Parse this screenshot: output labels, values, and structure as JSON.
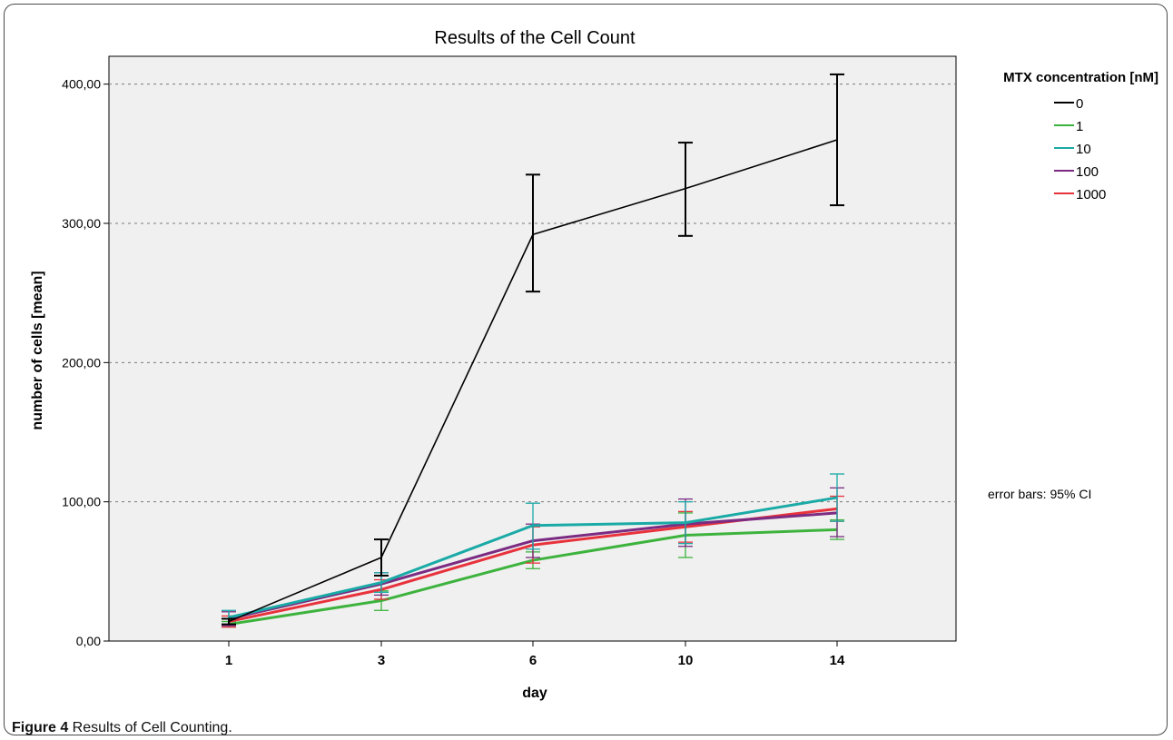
{
  "chart_data": {
    "type": "line",
    "title": "Results of the Cell Count",
    "xlabel": "day",
    "ylabel": "number of cells [mean]",
    "categories": [
      "1",
      "3",
      "6",
      "10",
      "14"
    ],
    "ylim": [
      0,
      420
    ],
    "yticks": [
      "0,00",
      "100,00",
      "200,00",
      "300,00",
      "400,00"
    ],
    "ytick_values": [
      0,
      100,
      200,
      300,
      400
    ],
    "grid": "horizontal dashed",
    "legend_title": "MTX concentration [nM]",
    "legend_position": "top-right",
    "annotation": "error bars: 95% CI",
    "series": [
      {
        "name": "0",
        "color": "#000000",
        "values": [
          14,
          60,
          292,
          325,
          360
        ],
        "err_low": [
          12,
          47,
          251,
          291,
          313
        ],
        "err_high": [
          16,
          73,
          335,
          358,
          407
        ]
      },
      {
        "name": "1",
        "color": "#3db33d",
        "values": [
          12,
          29,
          58,
          76,
          80
        ],
        "err_low": [
          10,
          22,
          52,
          60,
          73
        ],
        "err_high": [
          14,
          36,
          64,
          92,
          87
        ]
      },
      {
        "name": "10",
        "color": "#1aaaa6",
        "values": [
          17,
          42,
          83,
          85,
          103
        ],
        "err_low": [
          12,
          35,
          66,
          70,
          86
        ],
        "err_high": [
          22,
          49,
          99,
          100,
          120
        ]
      },
      {
        "name": "100",
        "color": "#7b2b82",
        "values": [
          16,
          41,
          72,
          84,
          92
        ],
        "err_low": [
          11,
          33,
          60,
          68,
          75
        ],
        "err_high": [
          21,
          49,
          84,
          102,
          110
        ]
      },
      {
        "name": "1000",
        "color": "#e8323c",
        "values": [
          14,
          37,
          69,
          82,
          95
        ],
        "err_low": [
          10,
          30,
          56,
          71,
          86
        ],
        "err_high": [
          18,
          44,
          82,
          93,
          104
        ]
      }
    ]
  },
  "caption": {
    "label": "Figure 4",
    "text": " Results of Cell Counting."
  }
}
